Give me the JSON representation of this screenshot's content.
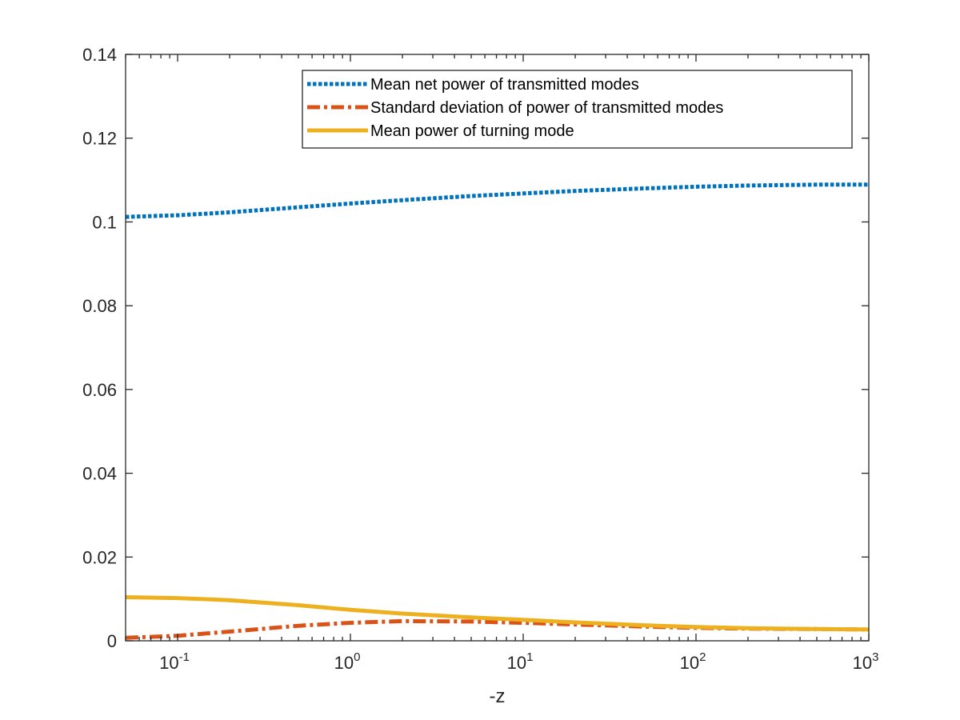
{
  "chart_data": {
    "type": "line",
    "title": "",
    "xlabel": "-z",
    "ylabel": "",
    "xscale": "log",
    "xlim": [
      0.05,
      1000
    ],
    "ylim": [
      0,
      0.14
    ],
    "grid": false,
    "legend_position": "top-right",
    "x_ticks": [
      {
        "base": "10",
        "exp": "-1",
        "value": 0.1
      },
      {
        "base": "10",
        "exp": "0",
        "value": 1
      },
      {
        "base": "10",
        "exp": "1",
        "value": 10
      },
      {
        "base": "10",
        "exp": "2",
        "value": 100
      },
      {
        "base": "10",
        "exp": "3",
        "value": 1000
      }
    ],
    "y_ticks": [
      {
        "label": "0",
        "value": 0
      },
      {
        "label": "0.02",
        "value": 0.02
      },
      {
        "label": "0.04",
        "value": 0.04
      },
      {
        "label": "0.06",
        "value": 0.06
      },
      {
        "label": "0.08",
        "value": 0.08
      },
      {
        "label": "0.1",
        "value": 0.1
      },
      {
        "label": "0.12",
        "value": 0.12
      },
      {
        "label": "0.14",
        "value": 0.14
      }
    ],
    "x": [
      0.05,
      0.1,
      0.2,
      0.5,
      1,
      2,
      5,
      10,
      20,
      50,
      100,
      200,
      500,
      1000
    ],
    "series": [
      {
        "name": "Mean net power of transmitted modes",
        "color": "#0072BD",
        "style": "dotted",
        "values": [
          0.1012,
          0.1016,
          0.1023,
          0.1035,
          0.1044,
          0.1052,
          0.1062,
          0.1068,
          0.1074,
          0.108,
          0.1084,
          0.1087,
          0.1089,
          0.1089
        ]
      },
      {
        "name": "Standard deviation of power of transmitted modes",
        "color": "#D95319",
        "style": "dashdot",
        "values": [
          0.0007,
          0.0012,
          0.0022,
          0.0036,
          0.0043,
          0.0047,
          0.0046,
          0.0043,
          0.0039,
          0.0034,
          0.0031,
          0.0029,
          0.0028,
          0.0027
        ]
      },
      {
        "name": "Mean power of turning mode",
        "color": "#EDB120",
        "style": "solid",
        "values": [
          0.0104,
          0.0102,
          0.0097,
          0.0085,
          0.0074,
          0.0065,
          0.0056,
          0.005,
          0.0044,
          0.0037,
          0.0033,
          0.003,
          0.0028,
          0.0027
        ]
      }
    ]
  }
}
